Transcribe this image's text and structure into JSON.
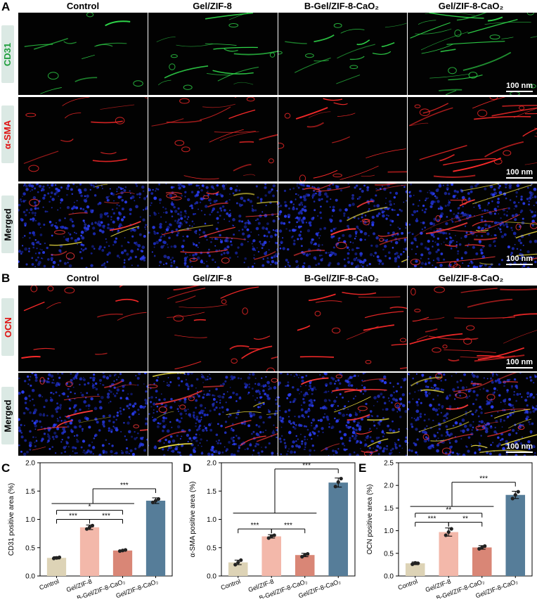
{
  "panels": {
    "A": "A",
    "B": "B",
    "C": "C",
    "D": "D",
    "E": "E"
  },
  "columns": [
    "Control",
    "Gel/ZIF-8",
    "B-Gel/ZIF-8-CaO₂",
    "Gel/ZIF-8-CaO₂"
  ],
  "rows_A": [
    {
      "label": "CD31",
      "color": "#1e9e3c",
      "stain": "green"
    },
    {
      "label": "α-SMA",
      "color": "#e01010",
      "stain": "red"
    },
    {
      "label": "Merged",
      "color": "#000000",
      "stain": "merged"
    }
  ],
  "rows_B": [
    {
      "label": "OCN",
      "color": "#e01010",
      "stain": "red"
    },
    {
      "label": "Merged",
      "color": "#000000",
      "stain": "merged"
    }
  ],
  "scale_bar": "100 nm",
  "colors": {
    "control": "#ddd3b6",
    "gel_zif8": "#f3b8aa",
    "b_gel": "#d98676",
    "gel_cao2": "#567d99",
    "label_bg": "#dbe9e4"
  },
  "chart_data": [
    {
      "type": "bar",
      "panel": "C",
      "categories": [
        "Control",
        "Gel/ZIF-8",
        "B-Gel/ZIF-8-CaO₂",
        "Gel/ZIF-8-CaO₂"
      ],
      "values": [
        0.32,
        0.86,
        0.45,
        1.33
      ],
      "errors": [
        0.02,
        0.04,
        0.01,
        0.05
      ],
      "points": [
        [
          0.31,
          0.32,
          0.33
        ],
        [
          0.83,
          0.86,
          0.89
        ],
        [
          0.44,
          0.45,
          0.46
        ],
        [
          1.3,
          1.33,
          1.36
        ]
      ],
      "ylabel": "CD31 positive area (%)",
      "ylim": [
        0,
        2.0
      ],
      "yticks": [
        "0.0",
        "0.5",
        "1.0",
        "1.5",
        "2.0"
      ],
      "significance": [
        {
          "from": 0,
          "to": 1,
          "label": "***"
        },
        {
          "from": 1,
          "to": 2,
          "label": "***"
        },
        {
          "from": 0,
          "to": 2,
          "label": "*"
        },
        {
          "from": 0,
          "to": 3,
          "label": "***"
        }
      ]
    },
    {
      "type": "bar",
      "panel": "D",
      "categories": [
        "Control",
        "Gel/ZIF-8",
        "B-Gel/ZIF-8-CaO₂",
        "Gel/ZIF-8-CaO₂"
      ],
      "values": [
        0.24,
        0.7,
        0.37,
        1.65
      ],
      "errors": [
        0.04,
        0.03,
        0.03,
        0.08
      ],
      "points": [
        [
          0.2,
          0.24,
          0.28
        ],
        [
          0.67,
          0.7,
          0.72
        ],
        [
          0.34,
          0.37,
          0.39
        ],
        [
          1.58,
          1.66,
          1.72
        ]
      ],
      "ylabel": "α-SMA positive area (%)",
      "ylim": [
        0,
        2.0
      ],
      "yticks": [
        "0.0",
        "0.5",
        "1.0",
        "1.5",
        "2.0"
      ],
      "significance": [
        {
          "from": 0,
          "to": 1,
          "label": "***"
        },
        {
          "from": 1,
          "to": 2,
          "label": "***"
        },
        {
          "from": 0,
          "to": 3,
          "label": "***"
        }
      ]
    },
    {
      "type": "bar",
      "panel": "E",
      "categories": [
        "Control",
        "Gel/ZIF-8",
        "B-Gel/ZIF-8-CaO₂",
        "Gel/ZIF-8-CaO₂"
      ],
      "values": [
        0.28,
        0.97,
        0.63,
        1.79
      ],
      "errors": [
        0.03,
        0.09,
        0.04,
        0.08
      ],
      "points": [
        [
          0.26,
          0.29,
          0.28
        ],
        [
          0.9,
          0.97,
          1.04
        ],
        [
          0.6,
          0.63,
          0.66
        ],
        [
          1.71,
          1.79,
          1.86
        ]
      ],
      "ylabel": "OCN positive area (%)",
      "ylim": [
        0,
        2.5
      ],
      "yticks": [
        "0.0",
        "0.5",
        "1.0",
        "1.5",
        "2.0",
        "2.5"
      ],
      "significance": [
        {
          "from": 0,
          "to": 1,
          "label": "***"
        },
        {
          "from": 1,
          "to": 2,
          "label": "**"
        },
        {
          "from": 0,
          "to": 2,
          "label": "**"
        },
        {
          "from": 0,
          "to": 3,
          "label": "***"
        }
      ]
    }
  ]
}
